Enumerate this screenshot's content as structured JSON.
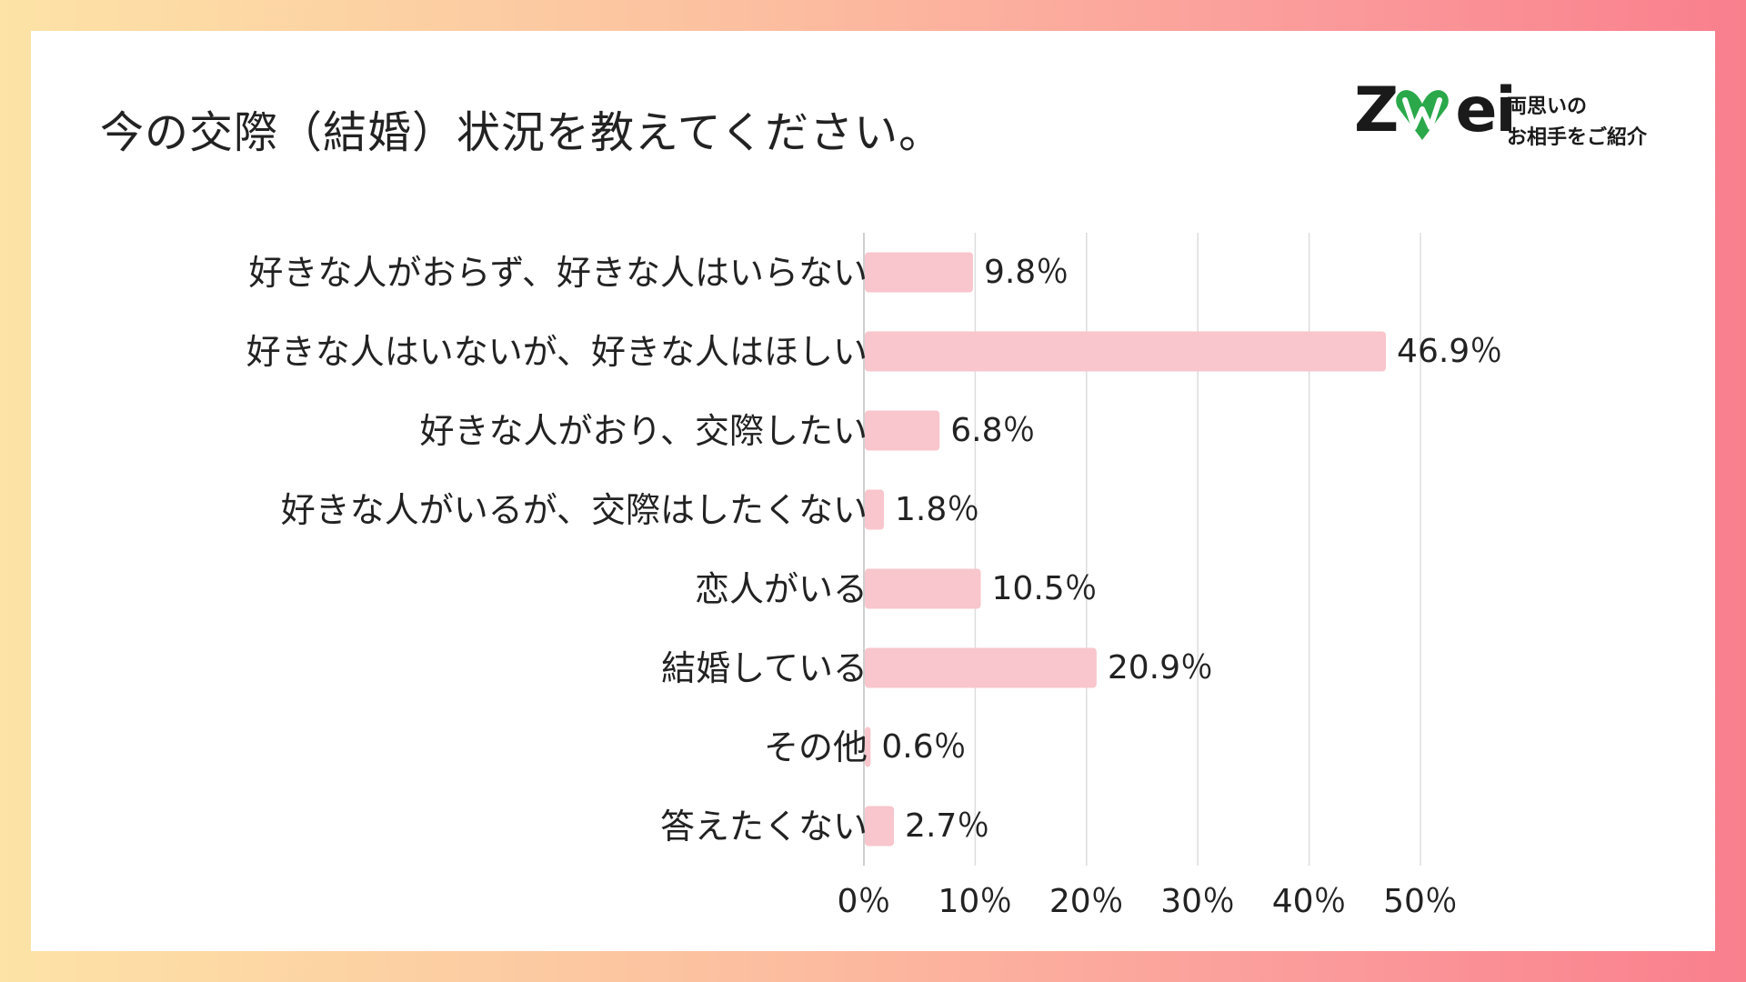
{
  "title": "今の交際（結婚）状況を教えてください。",
  "logo": {
    "wordmark": "ZWei",
    "tagline_1": "両思いの",
    "tagline_2": "お相手をご紹介",
    "brand_color": "#2aa84a"
  },
  "chart_data": {
    "type": "bar",
    "orientation": "horizontal",
    "title": "今の交際（結婚）状況を教えてください。",
    "categories": [
      "好きな人がおらず、好きな人はいらない",
      "好きな人はいないが、好きな人はほしい",
      "好きな人がおり、交際したい",
      "好きな人がいるが、交際はしたくない",
      "恋人がいる",
      "結婚している",
      "その他",
      "答えたくない"
    ],
    "values": [
      9.8,
      46.9,
      6.8,
      1.8,
      10.5,
      20.9,
      0.6,
      2.7
    ],
    "value_labels": [
      "9.8％",
      "46.9％",
      "6.8％",
      "1.8％",
      "10.5％",
      "20.9％",
      "0.6％",
      "2.7％"
    ],
    "xlim": [
      0,
      50
    ],
    "ticks": [
      0,
      10,
      20,
      30,
      40,
      50
    ],
    "tick_labels": [
      "0％",
      "10％",
      "20％",
      "30％",
      "40％",
      "50％"
    ],
    "grid": true,
    "bar_color": "#f8c6cc",
    "grid_color": "#dddddd"
  }
}
